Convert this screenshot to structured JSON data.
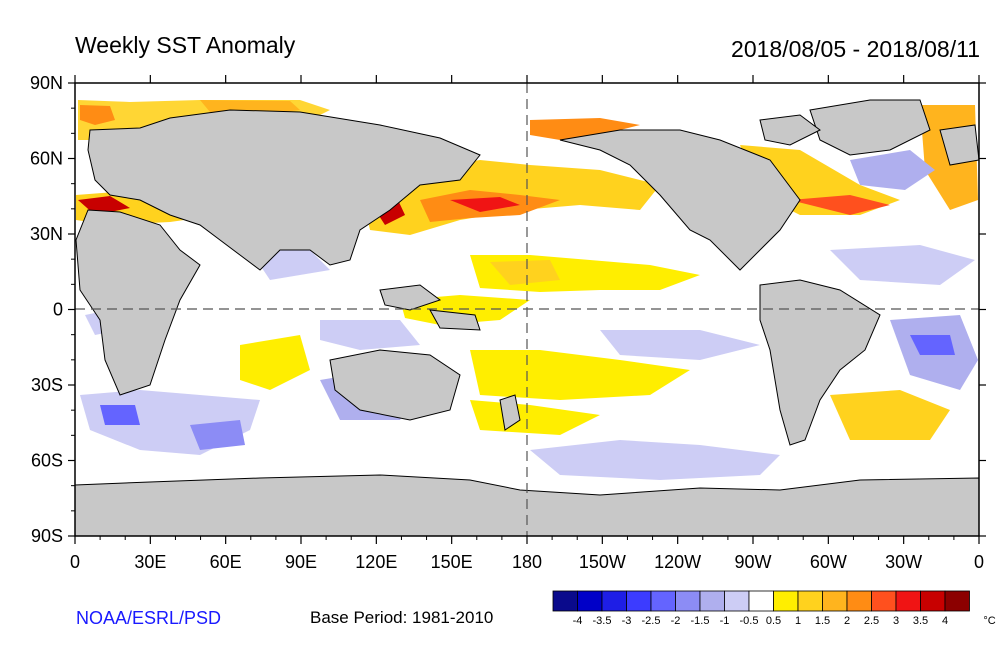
{
  "title": "Weekly SST Anomaly",
  "date_range": "2018/08/05 - 2018/08/11",
  "credit": "NOAA/ESRL/PSD",
  "base_period": "Base Period: 1981-2010",
  "lat_labels": [
    "90N",
    "60N",
    "30N",
    "0",
    "30S",
    "60S",
    "90S"
  ],
  "lon_labels": [
    "0",
    "30E",
    "60E",
    "90E",
    "120E",
    "150E",
    "180",
    "150W",
    "120W",
    "90W",
    "60W",
    "30W",
    "0"
  ],
  "colorbar": {
    "unit": "°C",
    "ticks": [
      "-4",
      "-3.5",
      "-3",
      "-2.5",
      "-2",
      "-1.5",
      "-1",
      "-0.5",
      "0.5",
      "1",
      "1.5",
      "2",
      "2.5",
      "3",
      "3.5",
      "4"
    ],
    "colors": [
      "#0a0a8c",
      "#0000c8",
      "#1e1ee6",
      "#3c3cff",
      "#6464ff",
      "#8c8cf5",
      "#afafee",
      "#cdcdf5",
      "#ffffff",
      "#ffee00",
      "#ffd21e",
      "#ffb41e",
      "#ff8c14",
      "#ff501e",
      "#f01414",
      "#c80000",
      "#8c0000"
    ]
  },
  "colors": {
    "land": "#c8c8c8",
    "ocean": "#ffffff",
    "credit_text": "#1a1aff"
  }
}
